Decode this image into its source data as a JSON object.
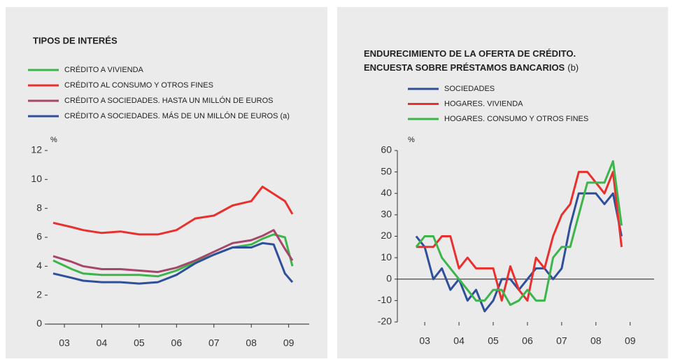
{
  "chart_data": [
    {
      "type": "line",
      "title": "TIPOS DE INTERÉS",
      "y_unit": "%",
      "xlim": [
        2002.55,
        2009.55
      ],
      "ylim": [
        0,
        12
      ],
      "xticks": [
        {
          "value": 2003,
          "label": "03"
        },
        {
          "value": 2004,
          "label": "04"
        },
        {
          "value": 2005,
          "label": "05"
        },
        {
          "value": 2006,
          "label": "06"
        },
        {
          "value": 2007,
          "label": "07"
        },
        {
          "value": 2008,
          "label": "08"
        },
        {
          "value": 2009,
          "label": "09"
        }
      ],
      "yticks": [
        0,
        2,
        4,
        6,
        8,
        10,
        12
      ],
      "x": [
        2002.7,
        2003.2,
        2003.5,
        2004,
        2004.5,
        2005,
        2005.5,
        2006,
        2006.5,
        2007,
        2007.5,
        2008,
        2008.3,
        2008.6,
        2008.9,
        2009.1
      ],
      "series": [
        {
          "name": "CRÉDITO A VIVIENDA",
          "color": "#3cb54a",
          "values": [
            4.4,
            3.8,
            3.5,
            3.4,
            3.4,
            3.4,
            3.3,
            3.7,
            4.3,
            4.8,
            5.3,
            5.5,
            5.9,
            6.2,
            6.0,
            4.0
          ]
        },
        {
          "name": "CRÉDITO AL CONSUMO Y OTROS FINES",
          "color": "#e8312f",
          "values": [
            7.0,
            6.7,
            6.5,
            6.3,
            6.4,
            6.2,
            6.2,
            6.5,
            7.3,
            7.5,
            8.2,
            8.5,
            9.5,
            9.0,
            8.5,
            7.6
          ]
        },
        {
          "name": "CRÉDITO A SOCIEDADES. HASTA UN MILLÓN DE EUROS",
          "color": "#a8456b",
          "values": [
            4.7,
            4.3,
            4.0,
            3.8,
            3.8,
            3.7,
            3.6,
            3.9,
            4.4,
            5.0,
            5.6,
            5.8,
            6.1,
            6.5,
            5.2,
            4.4
          ]
        },
        {
          "name": "CRÉDITO A SOCIEDADES. MÁS DE UN MILLÓN DE EUROS (a)",
          "color": "#2f4f9a",
          "values": [
            3.5,
            3.2,
            3.0,
            2.9,
            2.9,
            2.8,
            2.9,
            3.4,
            4.2,
            4.8,
            5.3,
            5.3,
            5.6,
            5.5,
            3.5,
            2.9
          ]
        }
      ]
    },
    {
      "type": "line",
      "title": [
        "ENDURECIMIENTO DE LA OFERTA DE CRÉDITO.",
        "ENCUESTA SOBRE PRÉSTAMOS BANCARIOS"
      ],
      "title_note": "(b)",
      "y_unit": "%",
      "xlim": [
        2002.2,
        2009.7
      ],
      "ylim": [
        -20,
        60
      ],
      "xticks": [
        {
          "value": 2003,
          "label": "03"
        },
        {
          "value": 2004,
          "label": "04"
        },
        {
          "value": 2005,
          "label": "05"
        },
        {
          "value": 2006,
          "label": "06"
        },
        {
          "value": 2007,
          "label": "07"
        },
        {
          "value": 2008,
          "label": "08"
        },
        {
          "value": 2009,
          "label": "09"
        }
      ],
      "yticks": [
        -20,
        -10,
        0,
        10,
        20,
        30,
        40,
        50,
        60
      ],
      "x": [
        2002.75,
        2003,
        2003.25,
        2003.5,
        2003.75,
        2004,
        2004.25,
        2004.5,
        2004.75,
        2005,
        2005.25,
        2005.5,
        2005.75,
        2006,
        2006.25,
        2006.5,
        2006.75,
        2007,
        2007.25,
        2007.5,
        2007.75,
        2008,
        2008.25,
        2008.5,
        2008.75
      ],
      "series": [
        {
          "name": "SOCIEDADES",
          "color": "#2f4f9a",
          "values": [
            20,
            15,
            0,
            5,
            -5,
            0,
            -10,
            -5,
            -15,
            -10,
            0,
            0,
            -5,
            0,
            5,
            5,
            0,
            5,
            25,
            40,
            40,
            40,
            35,
            40,
            20
          ]
        },
        {
          "name": "HOGARES. VIVIENDA",
          "color": "#e8312f",
          "values": [
            15,
            15,
            15,
            20,
            20,
            5,
            10,
            5,
            5,
            5,
            -10,
            6,
            -5,
            -10,
            10,
            5,
            20,
            30,
            35,
            50,
            50,
            45,
            40,
            50,
            15
          ]
        },
        {
          "name": "HOGARES. CONSUMO Y OTROS FINES",
          "color": "#3cb54a",
          "values": [
            15,
            20,
            20,
            10,
            5,
            0,
            -5,
            -10,
            -10,
            -5,
            -5,
            -12,
            -10,
            -5,
            -10,
            -10,
            10,
            15,
            15,
            30,
            45,
            45,
            45,
            55,
            25
          ]
        }
      ]
    }
  ]
}
